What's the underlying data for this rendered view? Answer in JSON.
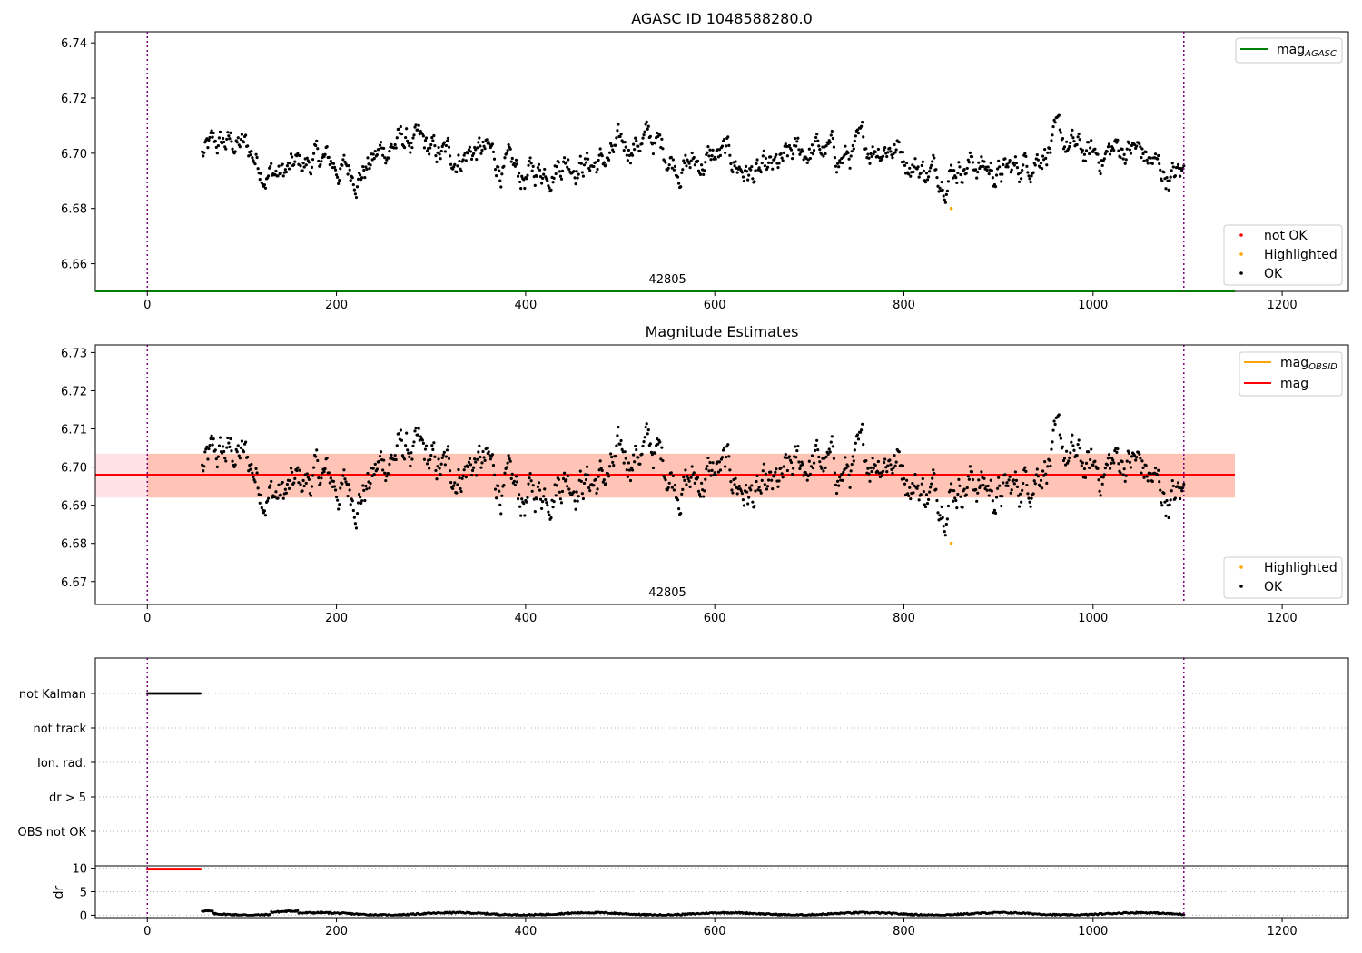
{
  "chart_data": [
    {
      "type": "scatter",
      "title": "AGASC ID 1048588280.0",
      "xlim": [
        -55,
        1270
      ],
      "ylim": [
        6.65,
        6.744
      ],
      "xticks": [
        "0",
        "200",
        "400",
        "600",
        "800",
        "1000",
        "1200"
      ],
      "xtick_values": [
        0,
        200,
        400,
        600,
        800,
        1000,
        1200
      ],
      "yticks": [
        "6.66",
        "6.68",
        "6.70",
        "6.72",
        "6.74"
      ],
      "ytick_values": [
        6.66,
        6.68,
        6.7,
        6.72,
        6.74
      ],
      "obsid_label": "42805",
      "obsid_label_x": 550,
      "vlines": [
        0,
        1096
      ],
      "mag_agasc": 6.65,
      "data_range": [
        58,
        1096
      ],
      "baseline": 6.698,
      "spread": 0.006,
      "highlighted_point": {
        "x": 850,
        "y": 6.68
      },
      "legend_lines": [
        {
          "label": "mag",
          "sub": "AGASC",
          "color": "#008000"
        }
      ],
      "legend_points": [
        {
          "label": "not OK",
          "color": "#ff0000"
        },
        {
          "label": "Highlighted",
          "color": "#ffa500"
        },
        {
          "label": "OK",
          "color": "#000000"
        }
      ]
    },
    {
      "type": "scatter",
      "title": "Magnitude Estimates",
      "xlim": [
        -55,
        1270
      ],
      "ylim": [
        6.664,
        6.732
      ],
      "xticks": [
        "0",
        "200",
        "400",
        "600",
        "800",
        "1000",
        "1200"
      ],
      "xtick_values": [
        0,
        200,
        400,
        600,
        800,
        1000,
        1200
      ],
      "yticks": [
        "6.67",
        "6.68",
        "6.69",
        "6.70",
        "6.71",
        "6.72",
        "6.73"
      ],
      "ytick_values": [
        6.67,
        6.68,
        6.69,
        6.7,
        6.71,
        6.72,
        6.73
      ],
      "obsid_label": "42805",
      "obsid_label_x": 550,
      "vlines": [
        0,
        1096
      ],
      "mag": 6.698,
      "mag_band": [
        6.692,
        6.7035
      ],
      "band_x": [
        -55,
        1150
      ],
      "obsid_band_x": [
        0,
        1150
      ],
      "data_range": [
        58,
        1096
      ],
      "highlighted_point": {
        "x": 850,
        "y": 6.68
      },
      "legend_lines": [
        {
          "label": "mag",
          "sub": "OBSID",
          "color": "#ffa500"
        },
        {
          "label": "mag",
          "sub": "",
          "color": "#ff0000"
        }
      ],
      "legend_points": [
        {
          "label": "Highlighted",
          "color": "#ffa500"
        },
        {
          "label": "OK",
          "color": "#000000"
        }
      ]
    },
    {
      "type": "scatter",
      "title": "",
      "xlim": [
        -55,
        1270
      ],
      "flag_labels": [
        "not Kalman",
        "not track",
        "Ion. rad.",
        "dr > 5",
        "OBS not OK"
      ],
      "not_kalman_range": [
        0,
        56
      ],
      "vlines": [
        0,
        1096
      ],
      "dr_ylabel": "dr",
      "dr_yticks": [
        "0",
        "5",
        "10"
      ],
      "dr_ytick_values": [
        0,
        5,
        10
      ],
      "dr_ylim": [
        -0.5,
        10.5
      ],
      "dr_flagged_range": [
        0,
        56
      ],
      "dr_flagged_value": 9.8,
      "dr_ok_range": [
        58,
        1096
      ],
      "dr_ok_value": 0.3,
      "xticks": [
        "0",
        "200",
        "400",
        "600",
        "800",
        "1000",
        "1200"
      ],
      "xtick_values": [
        0,
        200,
        400,
        600,
        800,
        1000,
        1200
      ]
    }
  ],
  "colors": {
    "ok": "#000000",
    "highlighted": "#ffa500",
    "not_ok": "#ff0000",
    "vline": "#800080",
    "agasc": "#008000",
    "mag_band": "#ffb6c1",
    "obsid_band": "#ffa07a"
  }
}
